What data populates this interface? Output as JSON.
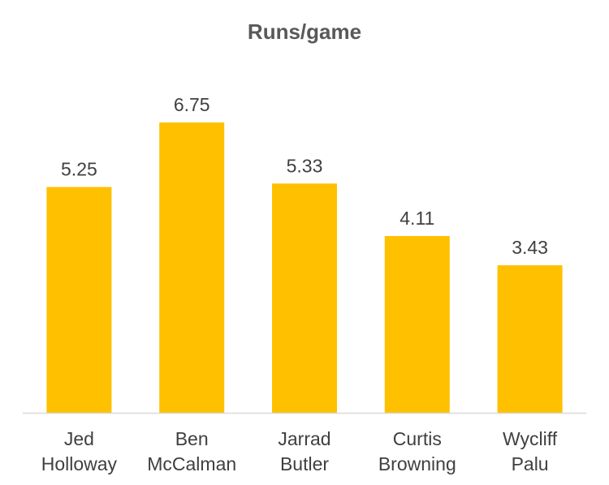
{
  "chart_data": {
    "type": "bar",
    "title": "Runs/game",
    "xlabel": "",
    "ylabel": "",
    "categories": [
      [
        "Jed",
        "Holloway"
      ],
      [
        "Ben",
        "McCalman"
      ],
      [
        "Jarrad",
        "Butler"
      ],
      [
        "Curtis",
        "Browning"
      ],
      [
        "Wycliff",
        "Palu"
      ]
    ],
    "values": [
      5.25,
      6.75,
      5.33,
      4.11,
      3.43
    ],
    "data_labels": [
      "5.25",
      "6.75",
      "5.33",
      "4.11",
      "3.43"
    ],
    "ylim": [
      0,
      6.75
    ],
    "grid": false,
    "legend": "none",
    "colors": {
      "bar": "#FFC000",
      "axis": "#D9D9D9",
      "title": "#595959",
      "text": "#404040"
    }
  }
}
